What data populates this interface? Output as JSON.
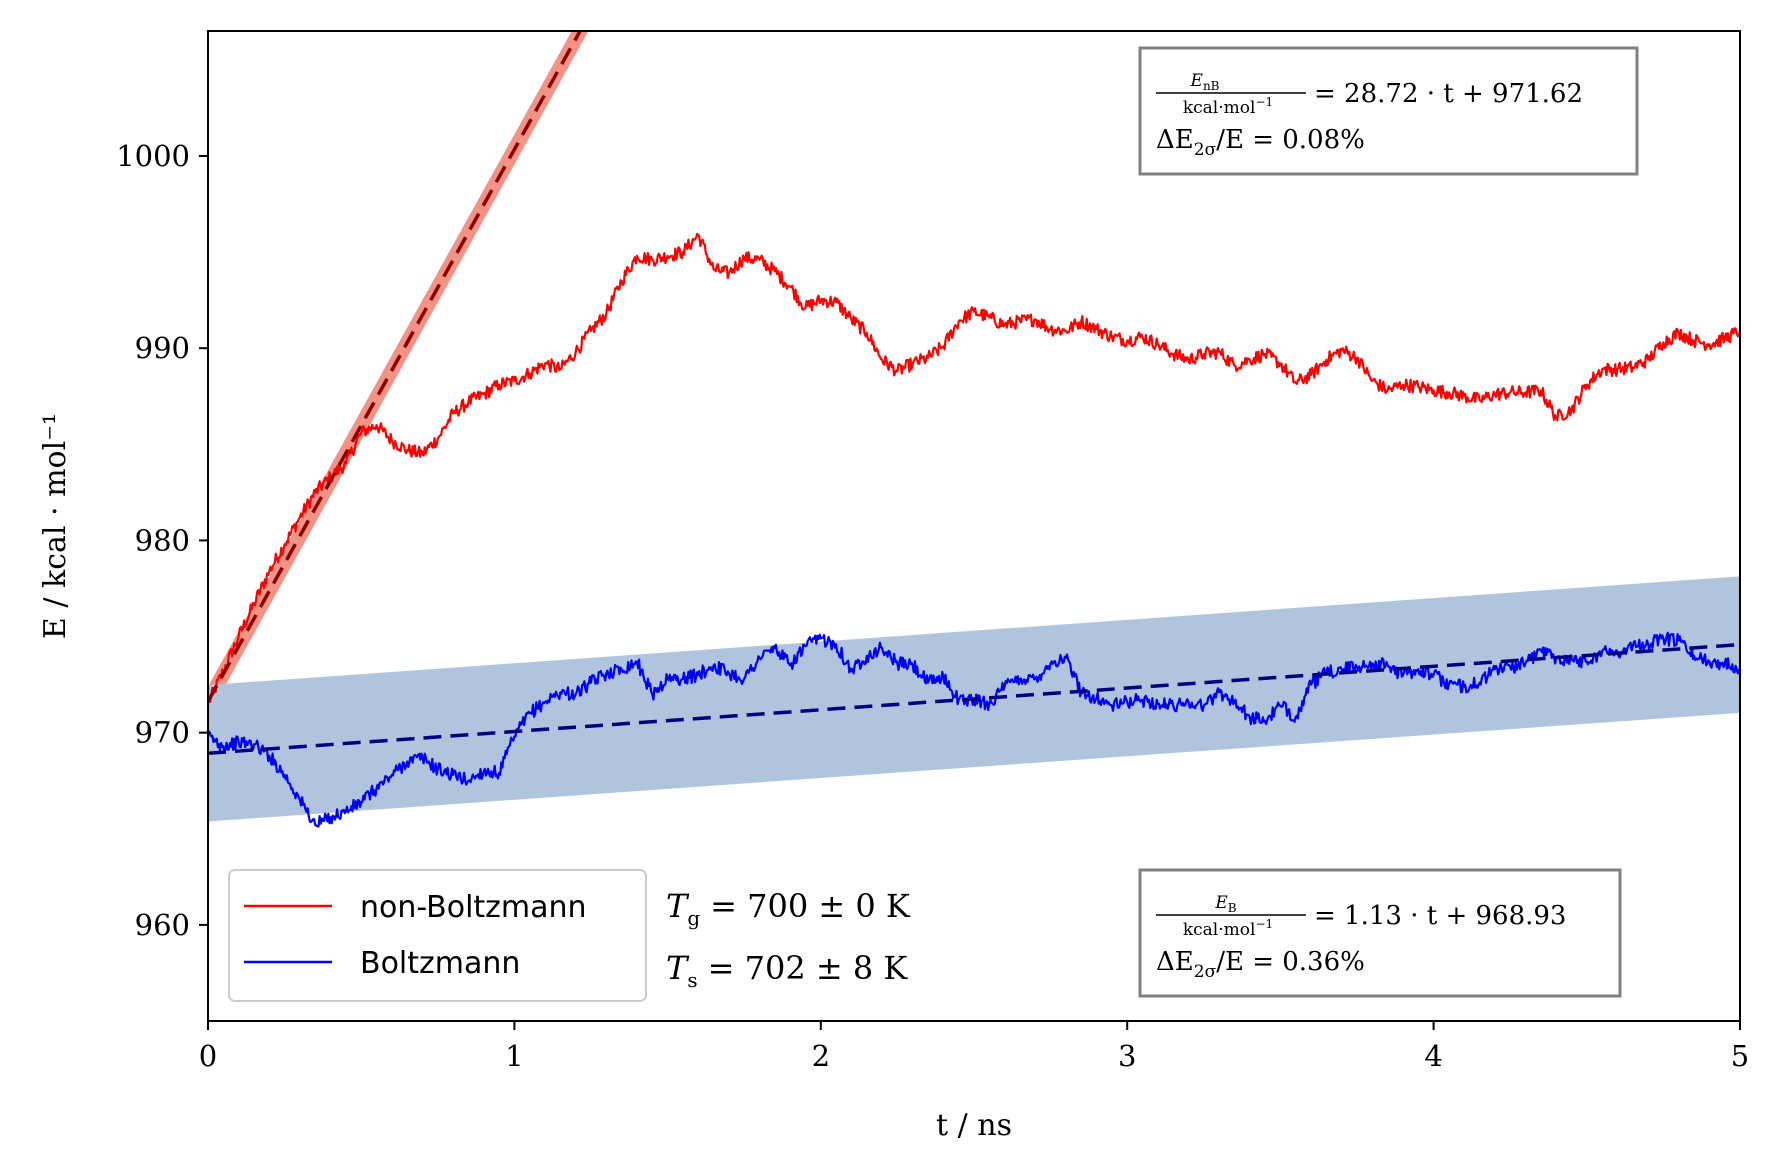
{
  "chart_data": {
    "type": "line",
    "xlabel": "t / ns",
    "ylabel": "E / kcal · mol⁻¹",
    "xlim": [
      0,
      5
    ],
    "ylim": [
      955,
      1006.5
    ],
    "xticks": [
      "0",
      "1",
      "2",
      "3",
      "4",
      "5"
    ],
    "yticks": [
      "960",
      "970",
      "980",
      "990",
      "1000"
    ],
    "xtick_values": [
      0,
      1,
      2,
      3,
      4,
      5
    ],
    "ytick_values": [
      960,
      970,
      980,
      990,
      1000
    ],
    "grid": false,
    "series": [
      {
        "name": "non-Boltzmann",
        "color": "#ff0000",
        "x": [
          0.0,
          0.05,
          0.1,
          0.15,
          0.2,
          0.25,
          0.3,
          0.35,
          0.4,
          0.45,
          0.5,
          0.55,
          0.6,
          0.65,
          0.7,
          0.75,
          0.8,
          0.85,
          0.9,
          0.95,
          1.0,
          1.05,
          1.1,
          1.15,
          1.2,
          1.25,
          1.3,
          1.35,
          1.4,
          1.45,
          1.5,
          1.55,
          1.6,
          1.65,
          1.7,
          1.75,
          1.8,
          1.85,
          1.9,
          1.95,
          2.0,
          2.05,
          2.1,
          2.15,
          2.2,
          2.25,
          2.3,
          2.35,
          2.4,
          2.45,
          2.5,
          2.55,
          2.6,
          2.65,
          2.7,
          2.75,
          2.8,
          2.85,
          2.9,
          2.95,
          3.0,
          3.05,
          3.1,
          3.15,
          3.2,
          3.25,
          3.3,
          3.35,
          3.4,
          3.45,
          3.5,
          3.55,
          3.6,
          3.65,
          3.7,
          3.75,
          3.8,
          3.85,
          3.9,
          3.95,
          4.0,
          4.05,
          4.1,
          4.15,
          4.2,
          4.25,
          4.3,
          4.35,
          4.4,
          4.45,
          4.5,
          4.55,
          4.6,
          4.65,
          4.7,
          4.75,
          4.8,
          4.85,
          4.9,
          4.95,
          5.0
        ],
        "values": [
          971.5,
          973.2,
          975.0,
          976.7,
          978.4,
          979.8,
          981.2,
          982.5,
          983.3,
          984.0,
          985.6,
          986.0,
          985.2,
          984.7,
          984.5,
          985.3,
          986.6,
          987.2,
          987.6,
          988.1,
          988.3,
          988.7,
          989.2,
          988.9,
          989.8,
          990.9,
          991.8,
          993.5,
          994.8,
          994.6,
          994.8,
          995.0,
          995.9,
          994.1,
          993.9,
          994.7,
          994.6,
          994.0,
          993.2,
          992.1,
          992.5,
          992.4,
          991.5,
          990.8,
          989.4,
          988.8,
          989.2,
          989.5,
          990.1,
          991.4,
          991.9,
          991.6,
          991.2,
          991.4,
          991.5,
          991.0,
          990.9,
          991.4,
          991.0,
          990.6,
          990.4,
          990.6,
          990.2,
          989.7,
          989.4,
          989.7,
          989.8,
          989.1,
          989.4,
          989.7,
          989.2,
          988.2,
          988.6,
          989.4,
          989.9,
          989.5,
          988.3,
          987.8,
          988.1,
          988.0,
          987.8,
          987.7,
          987.5,
          987.3,
          987.6,
          987.7,
          987.7,
          987.8,
          986.4,
          986.8,
          988.1,
          988.9,
          988.9,
          989.0,
          989.4,
          990.3,
          990.8,
          990.4,
          990.2,
          990.5,
          990.9
        ]
      },
      {
        "name": "Boltzmann",
        "color": "#0000ff",
        "x": [
          0.0,
          0.05,
          0.1,
          0.15,
          0.2,
          0.25,
          0.3,
          0.35,
          0.4,
          0.45,
          0.5,
          0.55,
          0.6,
          0.65,
          0.7,
          0.75,
          0.8,
          0.85,
          0.9,
          0.95,
          1.0,
          1.05,
          1.1,
          1.15,
          1.2,
          1.25,
          1.3,
          1.35,
          1.4,
          1.45,
          1.5,
          1.55,
          1.6,
          1.65,
          1.7,
          1.75,
          1.8,
          1.85,
          1.9,
          1.95,
          2.0,
          2.05,
          2.1,
          2.15,
          2.2,
          2.25,
          2.3,
          2.35,
          2.4,
          2.45,
          2.5,
          2.55,
          2.6,
          2.65,
          2.7,
          2.75,
          2.8,
          2.85,
          2.9,
          2.95,
          3.0,
          3.05,
          3.1,
          3.15,
          3.2,
          3.25,
          3.3,
          3.35,
          3.4,
          3.45,
          3.5,
          3.55,
          3.6,
          3.65,
          3.7,
          3.75,
          3.8,
          3.85,
          3.9,
          3.95,
          4.0,
          4.05,
          4.1,
          4.15,
          4.2,
          4.25,
          4.3,
          4.35,
          4.4,
          4.45,
          4.5,
          4.55,
          4.6,
          4.65,
          4.7,
          4.75,
          4.8,
          4.85,
          4.9,
          4.95,
          5.0
        ],
        "values": [
          969.8,
          969.3,
          969.5,
          969.4,
          968.8,
          967.8,
          966.5,
          965.2,
          965.6,
          965.9,
          966.4,
          967.1,
          967.8,
          968.5,
          968.7,
          968.1,
          967.8,
          967.5,
          968.0,
          967.9,
          969.8,
          971.0,
          971.6,
          972.1,
          972.0,
          972.6,
          973.1,
          973.3,
          973.7,
          972.0,
          972.8,
          972.8,
          973.0,
          973.5,
          973.1,
          972.8,
          973.9,
          974.4,
          973.5,
          974.5,
          974.9,
          974.6,
          973.2,
          974.0,
          974.4,
          973.6,
          973.5,
          972.6,
          972.9,
          971.7,
          971.7,
          971.5,
          972.4,
          972.8,
          972.8,
          973.6,
          973.9,
          972.1,
          971.8,
          971.4,
          971.6,
          971.7,
          971.5,
          971.4,
          971.6,
          971.4,
          972.1,
          971.6,
          970.8,
          970.6,
          971.4,
          970.8,
          972.5,
          973.1,
          973.3,
          973.4,
          973.6,
          973.5,
          973.0,
          973.3,
          973.0,
          972.5,
          972.4,
          972.6,
          973.3,
          973.4,
          973.6,
          974.3,
          973.9,
          973.8,
          973.7,
          974.2,
          974.2,
          974.5,
          974.6,
          974.9,
          974.8,
          974.0,
          973.7,
          973.6,
          973.4
        ]
      }
    ],
    "fits": [
      {
        "name": "non-Boltzmann fit",
        "slope": 28.72,
        "intercept": 971.62,
        "band_halfwidth": 0.78,
        "line_color": "#8b0000",
        "band_color": "#f08070"
      },
      {
        "name": "Boltzmann fit",
        "slope": 1.13,
        "intercept": 968.93,
        "band_halfwidth": 3.55,
        "line_color": "#000080",
        "band_color": "#b0c4de"
      }
    ],
    "legend": {
      "position": "lower-left",
      "entries": [
        {
          "label": "non-Boltzmann",
          "color": "#ff0000"
        },
        {
          "label": "Boltzmann",
          "color": "#0000ff"
        }
      ]
    },
    "temperatures": {
      "tg": {
        "symbol": "T",
        "sub": "g",
        "text": "= 700 ± 0 K"
      },
      "ts": {
        "symbol": "T",
        "sub": "s",
        "text": "= 702 ± 8 K"
      }
    },
    "annotations": {
      "top": {
        "frac_num": "E",
        "frac_num_sub": "nB",
        "frac_den": "kcal·mol",
        "frac_den_sup": "−1",
        "equation": "= 28.72 · t + 971.62",
        "delta_label": "ΔE",
        "delta_sub": "2σ",
        "delta_text": "/E = 0.08%"
      },
      "bottom": {
        "frac_num": "E",
        "frac_num_sub": "B",
        "frac_den": "kcal·mol",
        "frac_den_sup": "−1",
        "equation": "= 1.13 · t + 968.93",
        "delta_label": "ΔE",
        "delta_sub": "2σ",
        "delta_text": "/E = 0.36%"
      }
    }
  }
}
